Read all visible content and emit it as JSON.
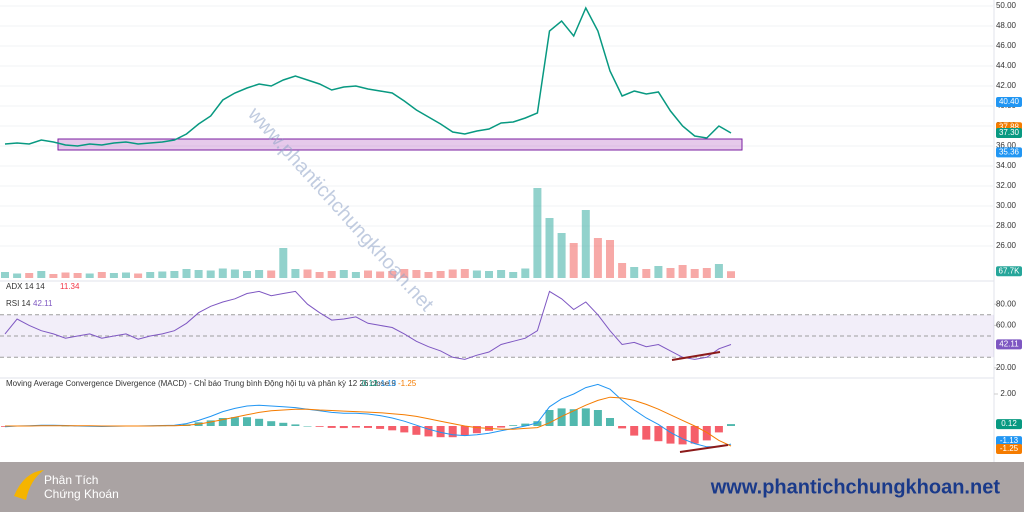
{
  "price_pane": {
    "ylim": [
      22.8,
      50.6
    ],
    "yticks": [
      {
        "value": 50,
        "label": "50.00"
      },
      {
        "value": 48,
        "label": "48.00"
      },
      {
        "value": 46,
        "label": "46.00"
      },
      {
        "value": 44,
        "label": "44.00"
      },
      {
        "value": 42,
        "label": "42.00"
      },
      {
        "value": 40,
        "label": "40.00"
      },
      {
        "value": 38,
        "label": "38.00"
      },
      {
        "value": 36,
        "label": "36.00"
      },
      {
        "value": 34,
        "label": "34.00"
      },
      {
        "value": 32,
        "label": "32.00"
      },
      {
        "value": 30,
        "label": "30.00"
      },
      {
        "value": 28,
        "label": "28.00"
      },
      {
        "value": 26,
        "label": "26.00"
      }
    ],
    "close": [
      36.2,
      36.3,
      36.2,
      36.6,
      36.4,
      36.1,
      36.0,
      36.2,
      36.1,
      36.3,
      36.4,
      36.2,
      36.3,
      36.4,
      36.6,
      37.2,
      38.2,
      39.0,
      40.6,
      41.3,
      41.8,
      42.2,
      42.0,
      42.6,
      43.0,
      42.6,
      42.2,
      41.6,
      41.9,
      42.0,
      41.7,
      41.5,
      41.3,
      40.5,
      39.6,
      38.9,
      38.2,
      37.4,
      37.2,
      37.5,
      37.7,
      38.3,
      38.4,
      38.8,
      39.3,
      47.5,
      48.5,
      47.0,
      49.8,
      47.5,
      43.5,
      41.0,
      41.5,
      41.2,
      41.4,
      39.5,
      38.0,
      37.0,
      36.8,
      38.0,
      37.3
    ],
    "volume_ylim": [
      0,
      2780
    ],
    "volume": [
      60,
      45,
      50,
      70,
      40,
      55,
      50,
      45,
      60,
      50,
      55,
      45,
      60,
      65,
      70,
      90,
      80,
      75,
      95,
      85,
      70,
      80,
      75,
      300,
      90,
      85,
      60,
      70,
      80,
      60,
      75,
      65,
      70,
      90,
      80,
      60,
      70,
      85,
      90,
      75,
      70,
      80,
      60,
      95,
      900,
      600,
      450,
      350,
      680,
      400,
      380,
      150,
      110,
      90,
      120,
      100,
      130,
      90,
      100,
      140,
      67.7
    ],
    "zone": [
      36.7,
      35.6
    ],
    "badges": [
      {
        "value": 40.4,
        "label": "40.40",
        "color": "#2196f3"
      },
      {
        "value": 37.88,
        "label": "37.88",
        "color": "#f57c00"
      },
      {
        "value": 37.3,
        "label": "37.30",
        "color": "#089981"
      },
      {
        "value": 35.36,
        "label": "35.36",
        "color": "#2196f3"
      }
    ],
    "volume_badge": {
      "value": 67.7,
      "label": "67.7K"
    },
    "adx_label": "ADX 14 14",
    "adx_value": 11.34,
    "watermark": "www.phantichchungkhoan.net"
  },
  "rsi_pane": {
    "label": "RSI 14",
    "value": 42.11,
    "ylim": [
      10.5,
      95.2
    ],
    "yticks": [
      {
        "value": 80,
        "label": "80.00"
      },
      {
        "value": 60,
        "label": "60.00"
      },
      {
        "value": 20,
        "label": "20.00"
      }
    ],
    "levels": [
      70,
      50,
      30
    ],
    "values": [
      52,
      66,
      60,
      55,
      52,
      48,
      50,
      52,
      48,
      50,
      52,
      47,
      50,
      52,
      55,
      62,
      72,
      78,
      82,
      85,
      90,
      92,
      88,
      90,
      92,
      80,
      72,
      65,
      66,
      68,
      62,
      60,
      58,
      52,
      45,
      40,
      36,
      30,
      28,
      32,
      35,
      42,
      45,
      48,
      55,
      92,
      85,
      75,
      82,
      70,
      55,
      42,
      44,
      40,
      42,
      36,
      30,
      28,
      30,
      38,
      42
    ]
  },
  "macd_pane": {
    "title": "Moving Average Convergence Divergence (MACD) - Chỉ báo Trung bình Động hội tụ và phân kỳ 12 26 close 9",
    "values": [
      0.12,
      -1.13,
      -1.25
    ],
    "ylim": [
      -2.125,
      2.875
    ],
    "yticks": [
      {
        "value": 2,
        "label": "2.00"
      }
    ],
    "histogram": [
      -0.05,
      0,
      0.02,
      0.04,
      0.03,
      0.01,
      -0.02,
      -0.03,
      -0.03,
      -0.02,
      0,
      0,
      0.02,
      0.02,
      0.03,
      0.1,
      0.23,
      0.35,
      0.5,
      0.55,
      0.55,
      0.45,
      0.3,
      0.2,
      0.1,
      0,
      -0.05,
      -0.12,
      -0.13,
      -0.1,
      -0.12,
      -0.18,
      -0.27,
      -0.4,
      -0.55,
      -0.65,
      -0.7,
      -0.7,
      -0.6,
      -0.45,
      -0.3,
      -0.1,
      0.05,
      0.15,
      0.3,
      1.0,
      1.1,
      1.05,
      1.1,
      1.0,
      0.5,
      -0.15,
      -0.6,
      -0.85,
      -0.95,
      -1.1,
      -1.15,
      -1.1,
      -0.9,
      -0.4,
      0.12
    ],
    "macd": [
      -0.05,
      0,
      0.02,
      0.05,
      0.05,
      0.03,
      0,
      -0.02,
      -0.03,
      -0.02,
      0,
      0,
      0.02,
      0.03,
      0.05,
      0.15,
      0.35,
      0.6,
      0.9,
      1.1,
      1.25,
      1.3,
      1.25,
      1.2,
      1.15,
      1.05,
      0.95,
      0.85,
      0.8,
      0.8,
      0.75,
      0.65,
      0.5,
      0.3,
      0.05,
      -0.2,
      -0.4,
      -0.55,
      -0.6,
      -0.55,
      -0.45,
      -0.3,
      -0.15,
      0,
      0.2,
      1.2,
      1.7,
      2.0,
      2.4,
      2.6,
      2.3,
      1.6,
      1.0,
      0.5,
      0.1,
      -0.4,
      -0.8,
      -1.1,
      -1.3,
      -1.3,
      -1.13
    ],
    "signal": [
      0,
      0,
      0,
      0.01,
      0.02,
      0.02,
      0.02,
      0.01,
      0,
      0,
      0,
      0,
      0,
      0.01,
      0.02,
      0.05,
      0.12,
      0.25,
      0.4,
      0.55,
      0.7,
      0.85,
      0.95,
      1.0,
      1.05,
      1.05,
      1.0,
      0.97,
      0.93,
      0.9,
      0.87,
      0.83,
      0.77,
      0.7,
      0.6,
      0.45,
      0.3,
      0.15,
      0,
      -0.1,
      -0.15,
      -0.2,
      -0.2,
      -0.15,
      -0.1,
      0.2,
      0.6,
      0.95,
      1.3,
      1.6,
      1.8,
      1.75,
      1.6,
      1.35,
      1.05,
      0.7,
      0.35,
      0,
      -0.4,
      -0.9,
      -1.25
    ]
  },
  "footer": {
    "brand_line1": "Phân Tích",
    "brand_line2": "Chứng Khoán",
    "url": "www.phantichchungkhoan.net"
  }
}
